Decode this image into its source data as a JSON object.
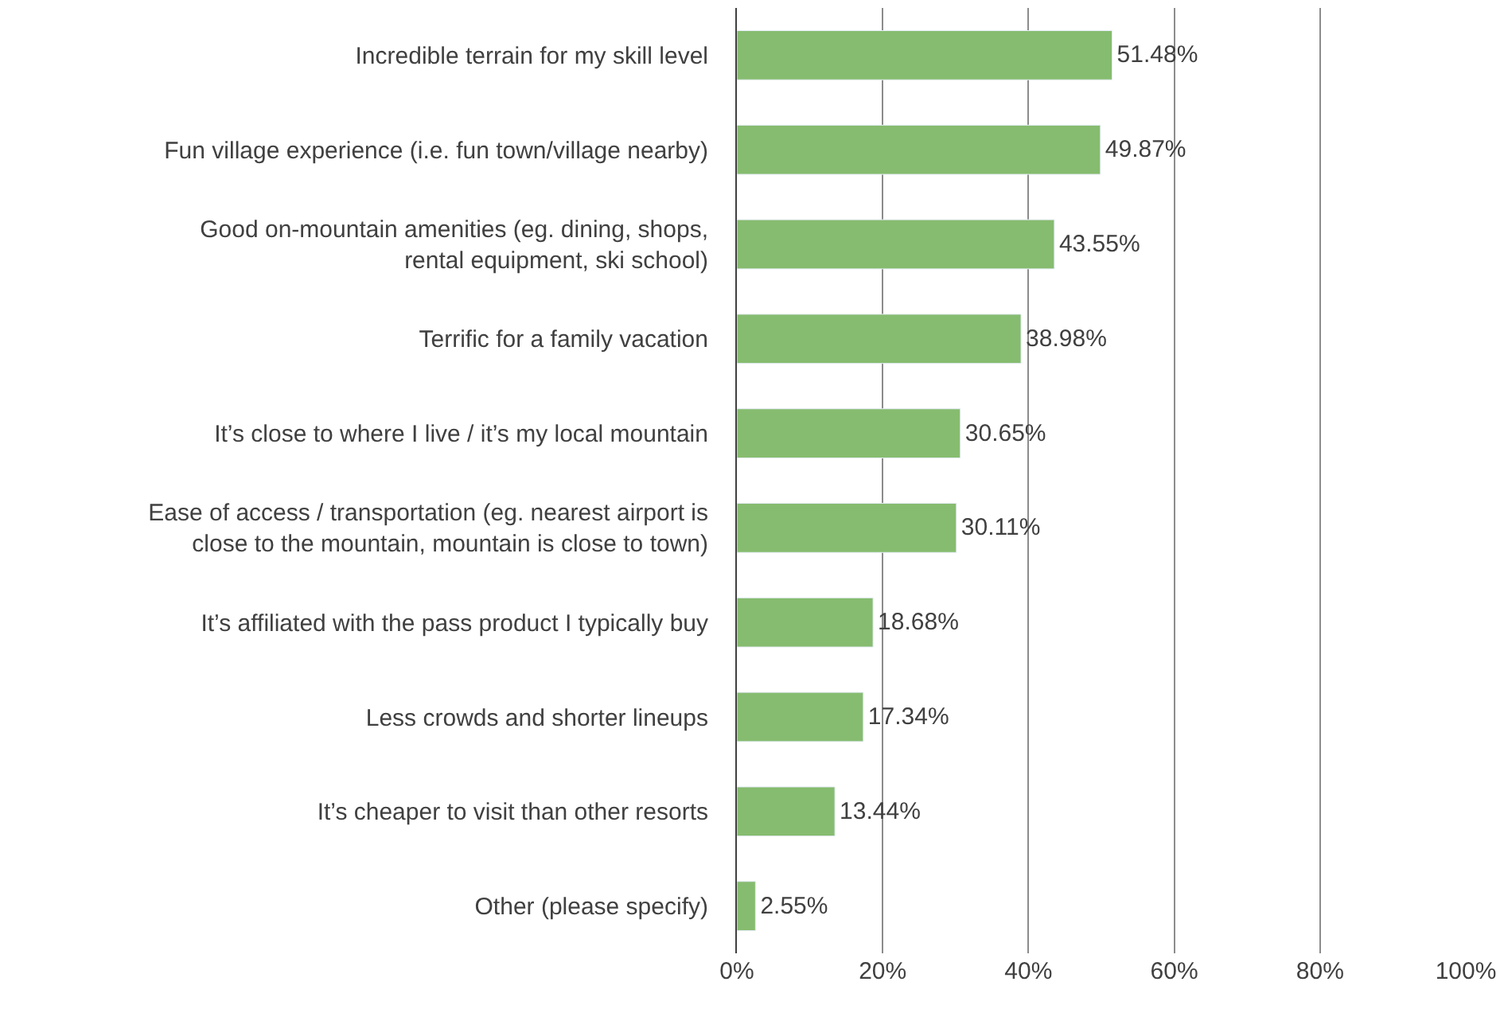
{
  "chart_data": {
    "type": "bar",
    "orientation": "horizontal",
    "categories": [
      "Incredible terrain for my skill level",
      "Fun village experience (i.e. fun town/village nearby)",
      "Good on-mountain amenities (eg. dining, shops,\nrental equipment, ski school)",
      "Terrific for a family vacation",
      "It’s close to where I live / it’s my local mountain",
      "Ease of access / transportation (eg. nearest airport is\nclose to the mountain, mountain is close to town)",
      "It’s affiliated with the pass product I typically buy",
      "Less crowds and shorter lineups",
      "It’s cheaper to visit than other resorts",
      "Other (please specify)"
    ],
    "values": [
      51.48,
      49.87,
      43.55,
      38.98,
      30.65,
      30.11,
      18.68,
      17.34,
      13.44,
      2.55
    ],
    "value_labels": [
      "51.48%",
      "49.87%",
      "43.55%",
      "38.98%",
      "30.65%",
      "30.11%",
      "18.68%",
      "17.34%",
      "13.44%",
      "2.55%"
    ],
    "color": "#86bc6f",
    "xlim": [
      0,
      100
    ],
    "xticks": [
      {
        "value": 0,
        "label": "0%"
      },
      {
        "value": 20,
        "label": "20%"
      },
      {
        "value": 40,
        "label": "40%"
      },
      {
        "value": 60,
        "label": "60%"
      },
      {
        "value": 80,
        "label": "80%"
      },
      {
        "value": 100,
        "label": "100%"
      }
    ],
    "grid": "x",
    "legend": false
  }
}
